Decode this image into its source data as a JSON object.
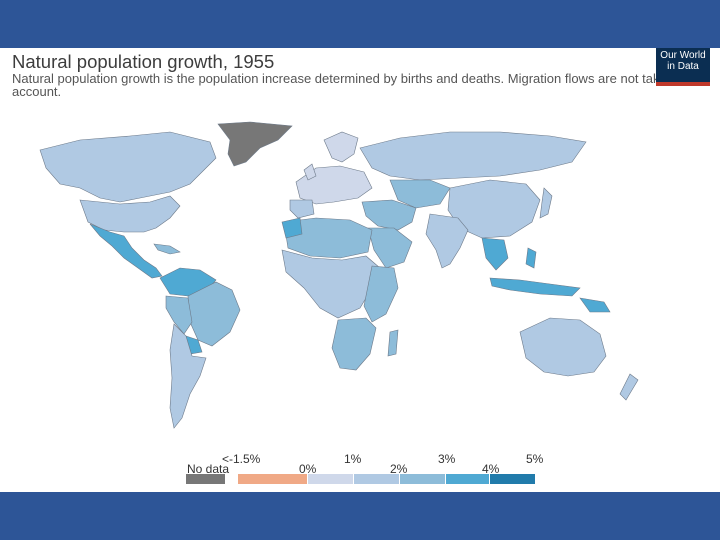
{
  "header": {
    "title": "Natural population growth, 1955",
    "subtitle": "Natural population growth is the population increase determined by births and deaths. Migration flows are not taken into account.",
    "logo_line1": "Our World",
    "logo_line2": "in Data"
  },
  "legend": {
    "no_data_label": "No data",
    "upper_ticks": [
      "<-1.5%",
      "1%",
      "3%",
      "5%"
    ],
    "lower_ticks": [
      "0%",
      "2%",
      "4%"
    ],
    "colors": {
      "no_data": "#777777",
      "negative": "#f0a986",
      "band_0_1": "#cfd8ea",
      "band_1_2": "#b0c9e3",
      "band_2_3": "#8dbcd9",
      "band_3_4": "#4fa9d3",
      "band_4_5": "#217bab"
    }
  },
  "colors": {
    "slide_band": "#2d5597",
    "ocean": "#ffffff",
    "border": "#6d7a8a"
  }
}
